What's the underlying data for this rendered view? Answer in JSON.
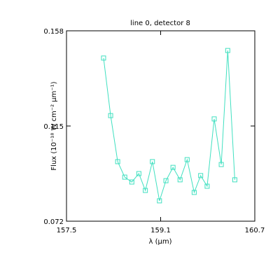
{
  "chart_data": {
    "type": "line",
    "title": "line 0, detector 8",
    "x_label": "λ (μm)",
    "y_label": "Flux (10⁻¹⁸ W cm⁻² μm⁻¹)",
    "x": [
      158.13,
      158.25,
      158.37,
      158.49,
      158.61,
      158.73,
      158.84,
      158.96,
      159.08,
      159.19,
      159.31,
      159.43,
      159.55,
      159.67,
      159.78,
      159.89,
      160.01,
      160.13,
      160.24,
      160.36
    ],
    "series": [
      {
        "color": "#40e0c0",
        "values": [
          0.1457,
          0.1197,
          0.0989,
          0.0919,
          0.0897,
          0.0935,
          0.0859,
          0.0989,
          0.0812,
          0.0903,
          0.0963,
          0.0907,
          0.0998,
          0.085,
          0.0926,
          0.0878,
          0.1182,
          0.0976,
          0.1491,
          0.0907
        ]
      }
    ],
    "xlim": [
      157.5,
      160.7
    ],
    "xticks": [
      157.5,
      159.1,
      160.7
    ],
    "ylim": [
      0.072,
      0.158
    ],
    "yticks": [
      0.072,
      0.115,
      0.158
    ]
  }
}
